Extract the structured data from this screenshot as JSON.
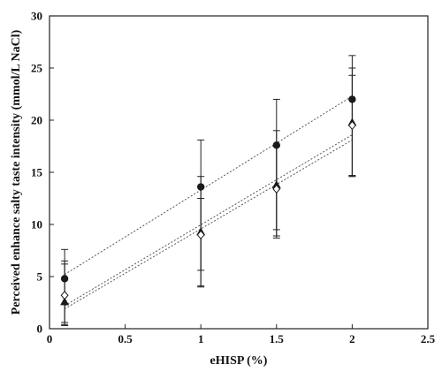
{
  "chart_data": {
    "type": "scatter",
    "title": "",
    "xlabel": "eHISP (%)",
    "ylabel": "Perceived enhance salty taste intensity (mmol/L NaCl)",
    "xlim": [
      0,
      2.5
    ],
    "ylim": [
      0,
      30
    ],
    "x_ticks": [
      0,
      0.5,
      1,
      1.5,
      2,
      2.5
    ],
    "x_tick_labels": [
      "0",
      "0.5",
      "1",
      "1.5",
      "2",
      "2.5"
    ],
    "y_ticks": [
      0,
      5,
      10,
      15,
      20,
      25,
      30
    ],
    "y_tick_labels": [
      "0",
      "5",
      "10",
      "15",
      "20",
      "25",
      "30"
    ],
    "grid": false,
    "legend": "none",
    "x": [
      0.1,
      1,
      1.5,
      2
    ],
    "series": [
      {
        "marker": "filled-circle",
        "color": "#1a1a1a",
        "values": [
          4.8,
          13.6,
          17.6,
          22.0
        ],
        "error_low": [
          0.3,
          4.0,
          8.7,
          14.6
        ],
        "error_high": [
          7.6,
          18.1,
          22.0,
          26.2
        ],
        "trend": {
          "x0": 0.1,
          "y0": 5.2,
          "x1": 2,
          "y1": 22.3
        }
      },
      {
        "marker": "filled-triangle",
        "color": "#1a1a1a",
        "values": [
          2.6,
          9.3,
          13.8,
          19.8
        ],
        "error_low": [
          0.4,
          4.1,
          9.5,
          14.7
        ],
        "error_high": [
          6.2,
          14.6,
          19.0,
          24.3
        ],
        "trend": {
          "x0": 0.1,
          "y0": 2.2,
          "x1": 2,
          "y1": 18.6
        }
      },
      {
        "marker": "open-diamond",
        "color": "#1a1a1a",
        "values": [
          3.2,
          9.0,
          13.4,
          19.5
        ],
        "error_low": [
          0.6,
          5.6,
          8.9,
          14.6
        ],
        "error_high": [
          6.5,
          12.5,
          17.5,
          25.0
        ],
        "trend": {
          "x0": 0.1,
          "y0": 1.9,
          "x1": 2,
          "y1": 18.1
        }
      }
    ]
  }
}
